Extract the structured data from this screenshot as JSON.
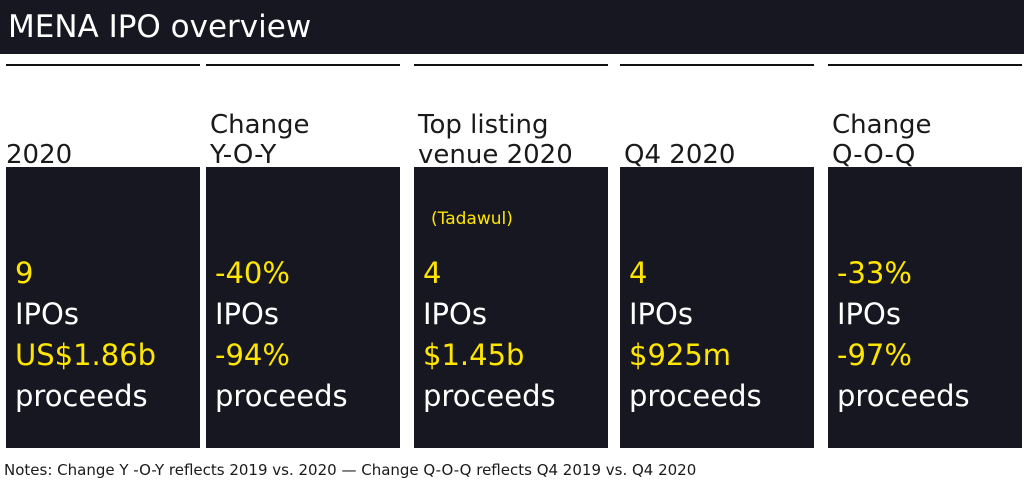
{
  "title": "MENA IPO overview",
  "colors": {
    "card_background": "#171721",
    "accent": "#ffe600",
    "card_text": "#ffffff"
  },
  "columns": [
    {
      "header_line1": "",
      "header_line2": "2020",
      "note": "",
      "count_value": "9",
      "count_unit": "IPOs",
      "proceeds_value": "US$1.86b",
      "proceeds_unit": "proceeds"
    },
    {
      "header_line1": "Change",
      "header_line2": "Y-O-Y",
      "note": "",
      "count_value": "-40%",
      "count_unit": "IPOs",
      "proceeds_value": "-94%",
      "proceeds_unit": "proceeds"
    },
    {
      "header_line1": "Top listing",
      "header_line2": "venue 2020",
      "note": "(Tadawul)",
      "count_value": "4",
      "count_unit": "IPOs",
      "proceeds_value": "$1.45b",
      "proceeds_unit": "proceeds"
    },
    {
      "header_line1": "",
      "header_line2": "Q4 2020",
      "note": "",
      "count_value": "4",
      "count_unit": "IPOs",
      "proceeds_value": "$925m",
      "proceeds_unit": "proceeds"
    },
    {
      "header_line1": "Change",
      "header_line2": "Q-O-Q",
      "note": "",
      "count_value": "-33%",
      "count_unit": "IPOs",
      "proceeds_value": "-97%",
      "proceeds_unit": "proceeds"
    }
  ],
  "notes": "Notes: Change Y -O-Y reflects 2019 vs. 2020 — Change Q-O-Q reflects Q4 2019 vs. Q4 2020"
}
